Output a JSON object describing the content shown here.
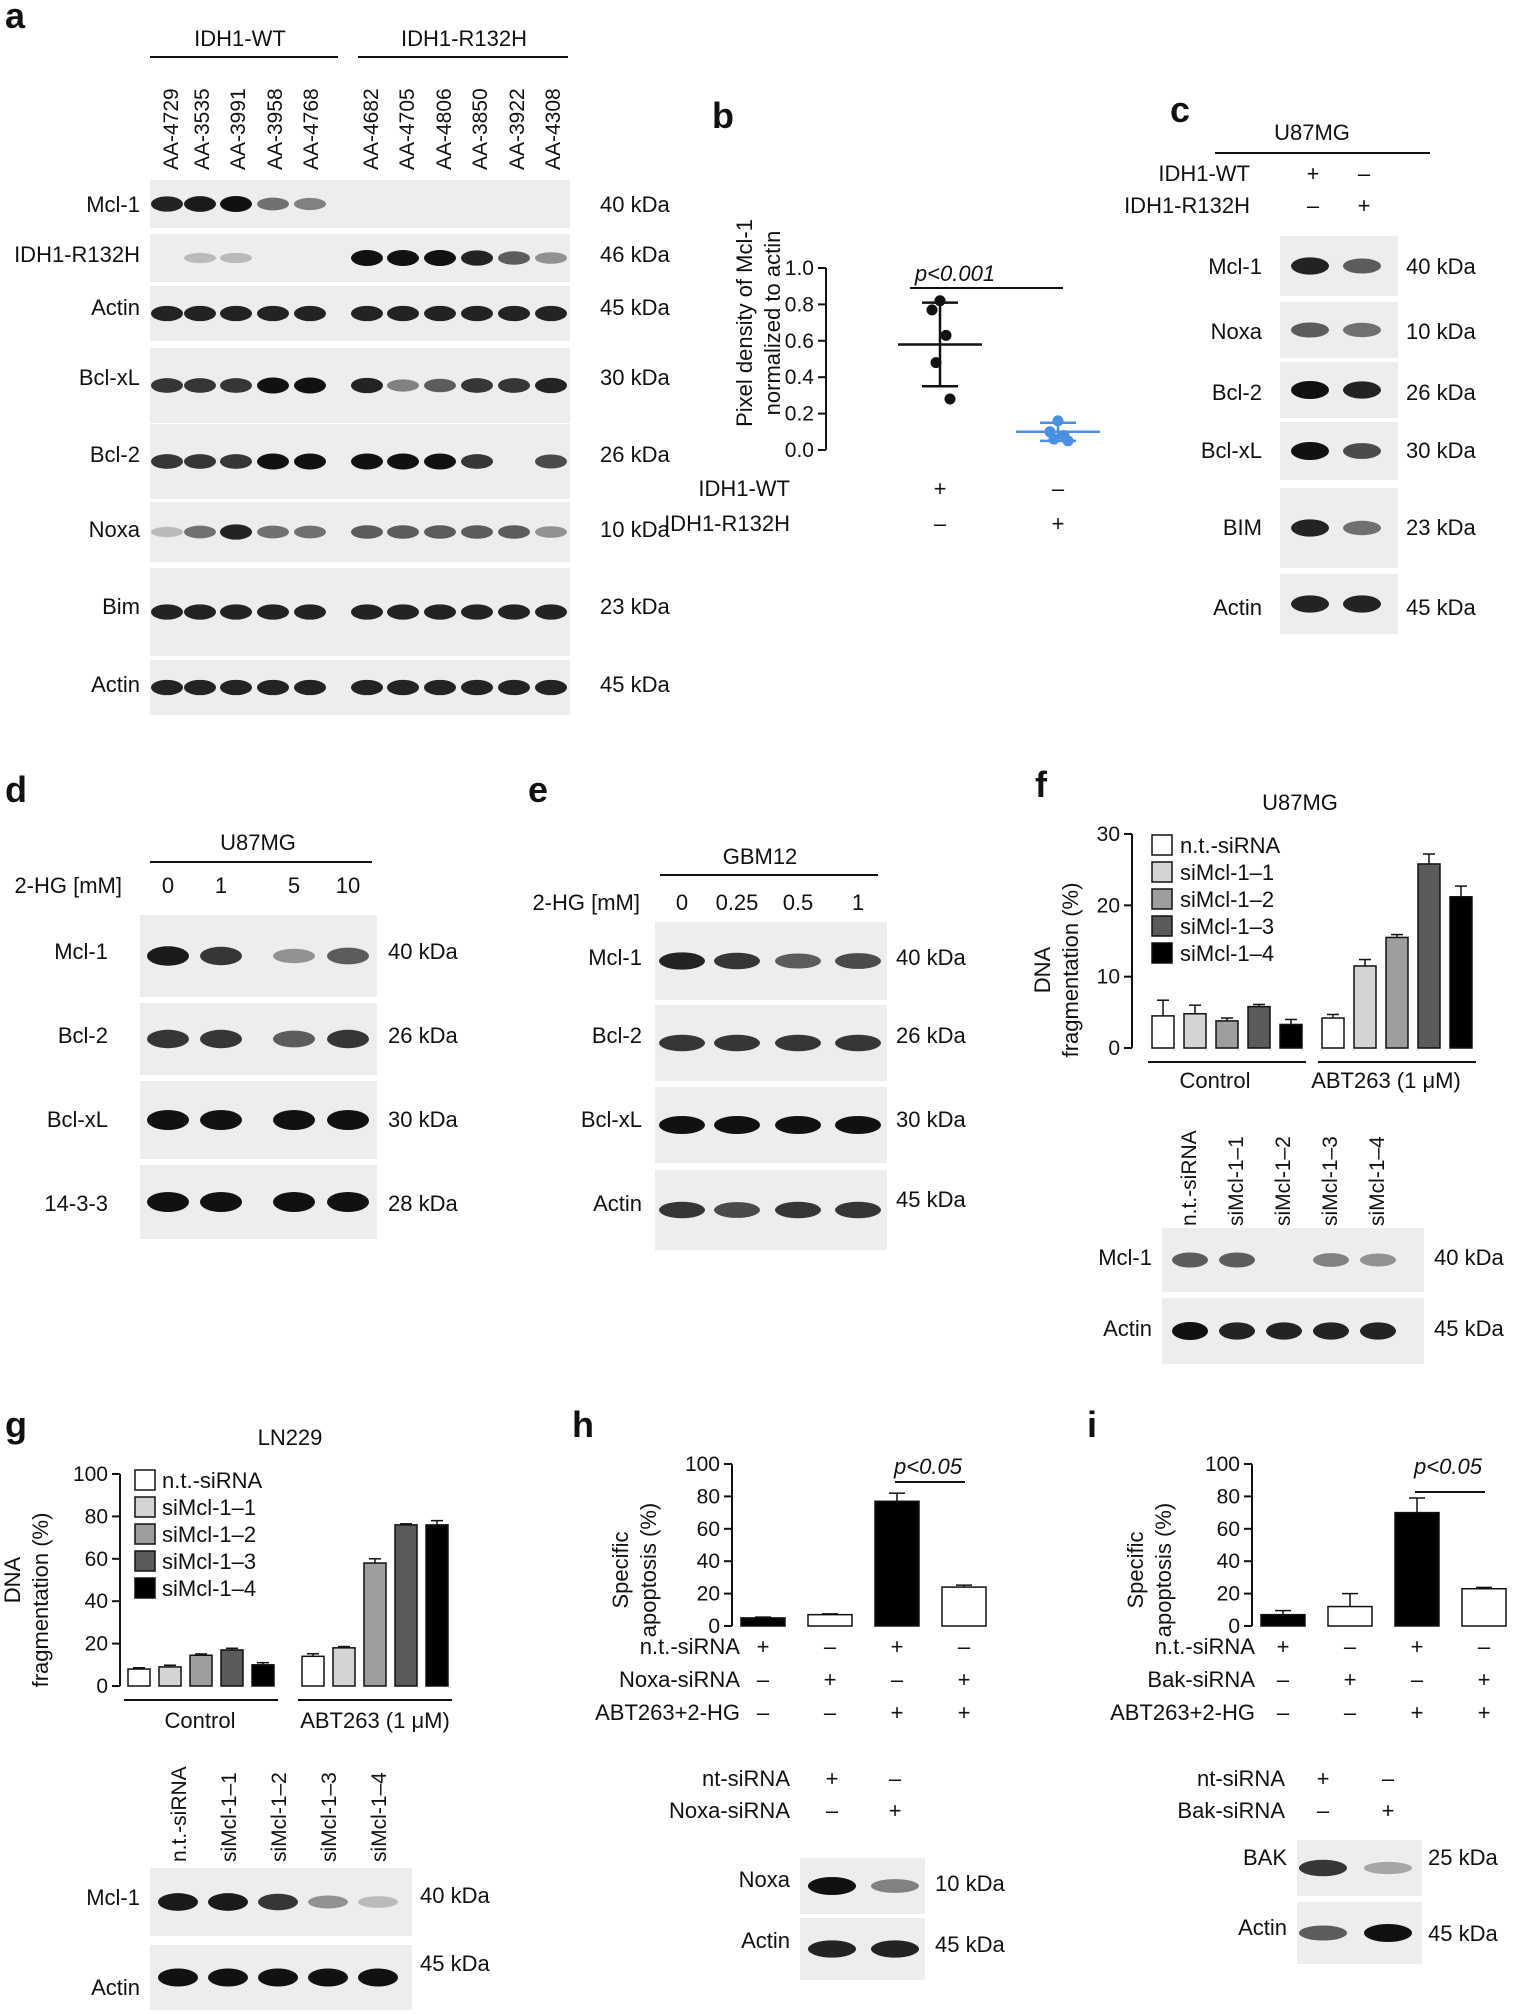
{
  "panels": {
    "a": {
      "letter": "a",
      "group_labels": [
        "IDH1-WT",
        "IDH1-R132H"
      ],
      "lanes": [
        "AA-4729",
        "AA-3535",
        "AA-3991",
        "AA-3958",
        "AA-4768",
        "AA-4682",
        "AA-4705",
        "AA-4806",
        "AA-3850",
        "AA-3922",
        "AA-4308"
      ],
      "rows": [
        {
          "label": "Mcl-1",
          "kda": "40 kDa",
          "intensity": [
            0.9,
            0.95,
            1.0,
            0.5,
            0.4,
            0,
            0,
            0,
            0,
            0,
            0
          ]
        },
        {
          "label": "IDH1-R132H",
          "kda": "46 kDa",
          "intensity": [
            0,
            0.1,
            0.1,
            0,
            0,
            1,
            1,
            1,
            0.9,
            0.6,
            0.3
          ]
        },
        {
          "label": "Actin",
          "kda": "45 kDa",
          "intensity": [
            0.9,
            0.9,
            0.9,
            0.9,
            0.9,
            0.9,
            0.9,
            0.9,
            0.9,
            0.9,
            0.9
          ]
        },
        {
          "label": "Bcl-xL",
          "kda": "30 kDa",
          "intensity": [
            0.8,
            0.8,
            0.8,
            1,
            1,
            0.9,
            0.4,
            0.6,
            0.8,
            0.8,
            0.9
          ]
        },
        {
          "label": "Bcl-2",
          "kda": "26 kDa",
          "intensity": [
            0.8,
            0.8,
            0.8,
            1,
            1,
            1,
            1,
            1,
            0.8,
            0,
            0.7
          ]
        },
        {
          "label": "Noxa",
          "kda": "10 kDa",
          "intensity": [
            0.1,
            0.5,
            0.9,
            0.5,
            0.5,
            0.6,
            0.6,
            0.6,
            0.6,
            0.6,
            0.3
          ]
        },
        {
          "label": "Bim",
          "kda": "23 kDa",
          "intensity": [
            0.9,
            0.9,
            0.9,
            0.9,
            0.9,
            0.9,
            0.9,
            0.9,
            0.9,
            0.9,
            0.9
          ]
        },
        {
          "label": "Actin",
          "kda": "45 kDa",
          "intensity": [
            0.9,
            0.9,
            0.9,
            0.9,
            0.9,
            0.9,
            0.9,
            0.9,
            0.9,
            0.9,
            0.9
          ]
        }
      ]
    },
    "b": {
      "letter": "b",
      "ylabel_line1": "Pixel density of Mcl-1",
      "ylabel_line2": "normalized to actin",
      "pvalue": "p<0.001",
      "cond_labels": [
        "IDH1-WT",
        "IDH1-R132H"
      ],
      "cond_signs": [
        [
          "+",
          "–"
        ],
        [
          "–",
          "+"
        ]
      ]
    },
    "c": {
      "letter": "c",
      "cell_line": "U87MG",
      "cond_labels": [
        "IDH1-WT",
        "IDH1-R132H"
      ],
      "cond_signs": [
        [
          "+",
          "–"
        ],
        [
          "–",
          "+"
        ]
      ],
      "rows": [
        {
          "label": "Mcl-1",
          "kda": "40 kDa",
          "intensity": [
            0.9,
            0.6
          ]
        },
        {
          "label": "Noxa",
          "kda": "10 kDa",
          "intensity": [
            0.6,
            0.5
          ]
        },
        {
          "label": "Bcl-2",
          "kda": "26 kDa",
          "intensity": [
            1,
            0.9
          ]
        },
        {
          "label": "Bcl-xL",
          "kda": "30 kDa",
          "intensity": [
            1,
            0.7
          ]
        },
        {
          "label": "BIM",
          "kda": "23 kDa",
          "intensity": [
            0.9,
            0.5
          ]
        },
        {
          "label": "Actin",
          "kda": "45 kDa",
          "intensity": [
            0.9,
            0.9
          ]
        }
      ]
    },
    "d": {
      "letter": "d",
      "cell_line": "U87MG",
      "dose_label": "2-HG [mM]",
      "doses": [
        "0",
        "1",
        "5",
        "10"
      ],
      "rows": [
        {
          "label": "Mcl-1",
          "kda": "40 kDa",
          "intensity": [
            0.95,
            0.8,
            0.3,
            0.6
          ]
        },
        {
          "label": "Bcl-2",
          "kda": "26 kDa",
          "intensity": [
            0.8,
            0.8,
            0.6,
            0.8
          ]
        },
        {
          "label": "Bcl-xL",
          "kda": "30 kDa",
          "intensity": [
            1,
            1,
            1,
            1
          ]
        },
        {
          "label": "14-3-3",
          "kda": "28 kDa",
          "intensity": [
            1,
            1,
            1,
            1
          ]
        }
      ]
    },
    "e": {
      "letter": "e",
      "cell_line": "GBM12",
      "dose_label": "2-HG [mM]",
      "doses": [
        "0",
        "0.25",
        "0.5",
        "1"
      ],
      "rows": [
        {
          "label": "Mcl-1",
          "kda": "40 kDa",
          "intensity": [
            0.9,
            0.8,
            0.6,
            0.7
          ]
        },
        {
          "label": "Bcl-2",
          "kda": "26 kDa",
          "intensity": [
            0.8,
            0.8,
            0.8,
            0.8
          ]
        },
        {
          "label": "Bcl-xL",
          "kda": "30 kDa",
          "intensity": [
            1,
            1,
            1,
            1
          ]
        },
        {
          "label": "Actin",
          "kda": "45 kDa",
          "intensity": [
            0.8,
            0.7,
            0.8,
            0.8
          ]
        }
      ]
    },
    "f": {
      "letter": "f",
      "cell_line": "U87MG",
      "ylabel_line1": "DNA",
      "ylabel_line2": "fragmentation (%)",
      "group_labels": [
        "Control",
        "ABT263 (1 μM)"
      ],
      "legend": [
        "n.t.-siRNA",
        "siMcl-1–1",
        "siMcl-1–2",
        "siMcl-1–3",
        "siMcl-1–4"
      ],
      "lanes": [
        "n.t.-siRNA",
        "siMcl-1–1",
        "siMcl-1–2",
        "siMcl-1–3",
        "siMcl-1–4"
      ],
      "rows": [
        {
          "label": "Mcl-1",
          "kda": "40 kDa",
          "intensity": [
            0.6,
            0.6,
            0,
            0.4,
            0.3
          ]
        },
        {
          "label": "Actin",
          "kda": "45 kDa",
          "intensity": [
            1,
            0.9,
            0.9,
            0.9,
            0.9
          ]
        }
      ]
    },
    "g": {
      "letter": "g",
      "cell_line": "LN229",
      "ylabel_line1": "DNA",
      "ylabel_line2": "fragmentation (%)",
      "group_labels": [
        "Control",
        "ABT263 (1 μM)"
      ],
      "legend": [
        "n.t.-siRNA",
        "siMcl-1–1",
        "siMcl-1–2",
        "siMcl-1–3",
        "siMcl-1–4"
      ],
      "lanes": [
        "n.t.-siRNA",
        "siMcl-1–1",
        "siMcl-1–2",
        "siMcl-1–3",
        "siMcl-1–4"
      ],
      "rows": [
        {
          "label": "Mcl-1",
          "kda": "40 kDa",
          "intensity": [
            0.95,
            0.95,
            0.8,
            0.3,
            0.1
          ]
        },
        {
          "label": "Actin",
          "kda": "45 kDa",
          "intensity": [
            1,
            1,
            1,
            1,
            1
          ]
        }
      ]
    },
    "h": {
      "letter": "h",
      "ylabel_line1": "Specific",
      "ylabel_line2": "apoptosis (%)",
      "pvalue": "p<0.05",
      "cond_labels": [
        "n.t.-siRNA",
        "Noxa-siRNA",
        "ABT263+2-HG"
      ],
      "cond_signs": [
        [
          "+",
          "–",
          "+",
          "–"
        ],
        [
          "–",
          "+",
          "–",
          "+"
        ],
        [
          "–",
          "–",
          "+",
          "+"
        ]
      ],
      "blot_cond_labels": [
        "nt-siRNA",
        "Noxa-siRNA"
      ],
      "blot_cond_signs": [
        [
          "+",
          "–"
        ],
        [
          "–",
          "+"
        ]
      ],
      "rows": [
        {
          "label": "Noxa",
          "kda": "10 kDa",
          "intensity": [
            1,
            0.4
          ]
        },
        {
          "label": "Actin",
          "kda": "45 kDa",
          "intensity": [
            0.9,
            0.9
          ]
        }
      ]
    },
    "i": {
      "letter": "i",
      "ylabel_line1": "Specific",
      "ylabel_line2": "apoptosis (%)",
      "pvalue": "p<0.05",
      "cond_labels": [
        "n.t.-siRNA",
        "Bak-siRNA",
        "ABT263+2-HG"
      ],
      "cond_signs": [
        [
          "+",
          "–",
          "+",
          "–"
        ],
        [
          "–",
          "+",
          "–",
          "+"
        ],
        [
          "–",
          "–",
          "+",
          "+"
        ]
      ],
      "blot_cond_labels": [
        "nt-siRNA",
        "Bak-siRNA"
      ],
      "blot_cond_signs": [
        [
          "+",
          "–"
        ],
        [
          "–",
          "+"
        ]
      ],
      "rows": [
        {
          "label": "BAK",
          "kda": "25 kDa",
          "intensity": [
            0.8,
            0.2
          ]
        },
        {
          "label": "Actin",
          "kda": "45 kDa",
          "intensity": [
            0.6,
            1
          ]
        }
      ]
    }
  },
  "chart_data": [
    {
      "id": "b",
      "type": "scatter",
      "ylabel": "Pixel density of Mcl-1 normalized to actin",
      "ylim": [
        0,
        1.0
      ],
      "yticks": [
        "0.0",
        "0.2",
        "0.4",
        "0.6",
        "0.8",
        "1.0"
      ],
      "groups": [
        {
          "name": "IDH1-WT",
          "points": [
            0.82,
            0.77,
            0.63,
            0.48,
            0.28
          ],
          "mean": 0.58,
          "sd": 0.23,
          "color": "#111111"
        },
        {
          "name": "IDH1-R132H",
          "points": [
            0.16,
            0.1,
            0.08,
            0.06,
            0.05
          ],
          "mean": 0.1,
          "sd": 0.05,
          "color": "#4a90e2"
        }
      ]
    },
    {
      "id": "f",
      "type": "bar",
      "ylabel": "DNA fragmentation (%)",
      "ylim": [
        0,
        30
      ],
      "yticks": [
        "0",
        "10",
        "20",
        "30"
      ],
      "categories": [
        "Control",
        "ABT263 (1 μM)"
      ],
      "series": [
        {
          "name": "n.t.-siRNA",
          "values": [
            4.5,
            4.2
          ],
          "errors": [
            2.2,
            0.5
          ],
          "color": "#ffffff"
        },
        {
          "name": "siMcl-1–1",
          "values": [
            4.8,
            11.5
          ],
          "errors": [
            1.2,
            0.9
          ],
          "color": "#d4d4d4"
        },
        {
          "name": "siMcl-1–2",
          "values": [
            3.8,
            15.5
          ],
          "errors": [
            0.4,
            0.4
          ],
          "color": "#9e9e9e"
        },
        {
          "name": "siMcl-1–3",
          "values": [
            5.8,
            25.8
          ],
          "errors": [
            0.3,
            1.4
          ],
          "color": "#5a5a5a"
        },
        {
          "name": "siMcl-1–4",
          "values": [
            3.3,
            21.2
          ],
          "errors": [
            0.7,
            1.5
          ],
          "color": "#000000"
        }
      ]
    },
    {
      "id": "g",
      "type": "bar",
      "ylabel": "DNA fragmentation (%)",
      "ylim": [
        0,
        100
      ],
      "yticks": [
        "0",
        "20",
        "40",
        "60",
        "80",
        "100"
      ],
      "categories": [
        "Control",
        "ABT263 (1 μM)"
      ],
      "series": [
        {
          "name": "n.t.-siRNA",
          "values": [
            8,
            14
          ],
          "errors": [
            0.6,
            1.2
          ],
          "color": "#ffffff"
        },
        {
          "name": "siMcl-1–1",
          "values": [
            9,
            18
          ],
          "errors": [
            0.8,
            0.6
          ],
          "color": "#d4d4d4"
        },
        {
          "name": "siMcl-1–2",
          "values": [
            14.5,
            58
          ],
          "errors": [
            0.6,
            2
          ],
          "color": "#9e9e9e"
        },
        {
          "name": "siMcl-1–3",
          "values": [
            17,
            76
          ],
          "errors": [
            0.8,
            0.5
          ],
          "color": "#5a5a5a"
        },
        {
          "name": "siMcl-1–4",
          "values": [
            10,
            76
          ],
          "errors": [
            1,
            2
          ],
          "color": "#000000"
        }
      ]
    },
    {
      "id": "h",
      "type": "bar",
      "ylabel": "Specific apoptosis (%)",
      "ylim": [
        0,
        100
      ],
      "yticks": [
        "0",
        "20",
        "40",
        "60",
        "80",
        "100"
      ],
      "values": [
        5,
        7,
        77,
        24
      ],
      "errors": [
        0.5,
        0.5,
        5,
        1.2
      ],
      "colors": [
        "#000000",
        "#ffffff",
        "#000000",
        "#ffffff"
      ]
    },
    {
      "id": "i",
      "type": "bar",
      "ylabel": "Specific apoptosis (%)",
      "ylim": [
        0,
        100
      ],
      "yticks": [
        "0",
        "20",
        "40",
        "60",
        "80",
        "100"
      ],
      "values": [
        7,
        12,
        70,
        23
      ],
      "errors": [
        2.5,
        8,
        9,
        0.8
      ],
      "colors": [
        "#000000",
        "#ffffff",
        "#000000",
        "#ffffff"
      ]
    }
  ]
}
